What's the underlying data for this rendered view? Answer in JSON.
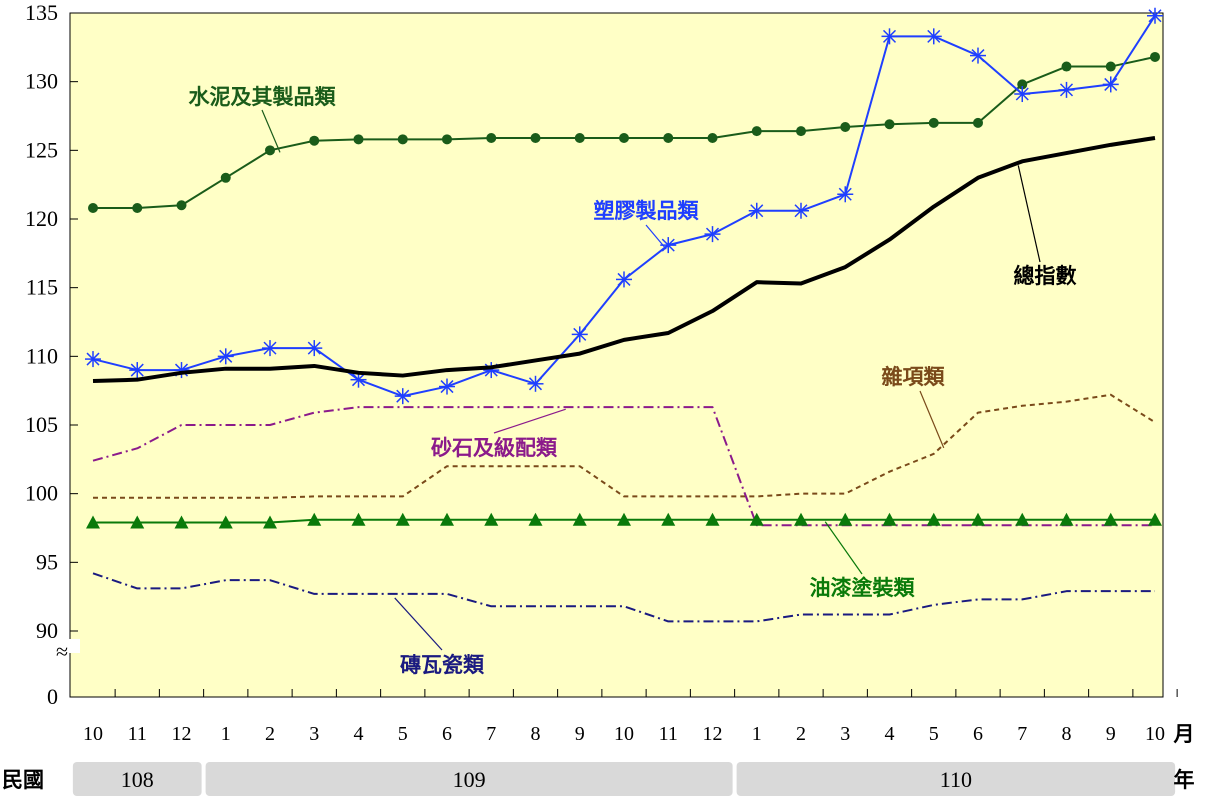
{
  "chart_data": {
    "type": "line",
    "title": "",
    "xlabel": "",
    "ylabel": "",
    "x_unit_label": "月",
    "year_unit_label": "年",
    "era_label": "民國",
    "ylim": [
      88,
      135
    ],
    "y_ticks": [
      0,
      90,
      95,
      100,
      105,
      110,
      115,
      120,
      125,
      130,
      135
    ],
    "y_axis_break": true,
    "break_symbol": "≈",
    "grid": false,
    "legend": "none",
    "categories": [
      "10",
      "11",
      "12",
      "1",
      "2",
      "3",
      "4",
      "5",
      "6",
      "7",
      "8",
      "9",
      "10",
      "11",
      "12",
      "1",
      "2",
      "3",
      "4",
      "5",
      "6",
      "7",
      "8",
      "9",
      "10"
    ],
    "years": [
      {
        "label": "108",
        "from": 0,
        "to": 2
      },
      {
        "label": "109",
        "from": 3,
        "to": 14
      },
      {
        "label": "110",
        "from": 15,
        "to": 24
      }
    ],
    "series": [
      {
        "name": "水泥及其製品類",
        "color": "#1a5c1a",
        "style": "solid",
        "marker": "circle",
        "values": [
          120.8,
          120.8,
          121.0,
          123.0,
          125.0,
          125.7,
          125.8,
          125.8,
          125.8,
          125.9,
          125.9,
          125.9,
          125.9,
          125.9,
          125.9,
          126.4,
          126.4,
          126.7,
          126.9,
          127.0,
          127.0,
          129.8,
          131.1,
          131.1,
          131.8
        ]
      },
      {
        "name": "塑膠製品類",
        "color": "#1f3fff",
        "style": "solid",
        "marker": "asterisk",
        "values": [
          109.8,
          109.0,
          109.0,
          110.0,
          110.6,
          110.6,
          108.3,
          107.1,
          107.8,
          109.0,
          108.0,
          111.6,
          115.6,
          118.1,
          118.9,
          120.6,
          120.6,
          121.8,
          133.3,
          133.3,
          131.9,
          129.1,
          129.4,
          129.8,
          134.8
        ]
      },
      {
        "name": "總指數",
        "color": "#000000",
        "style": "solid-thick",
        "marker": "none",
        "values": [
          108.2,
          108.3,
          108.8,
          109.1,
          109.1,
          109.3,
          108.8,
          108.6,
          109.0,
          109.2,
          109.7,
          110.2,
          111.2,
          111.7,
          113.3,
          115.4,
          115.3,
          116.5,
          118.5,
          120.9,
          123.0,
          124.2,
          124.8,
          125.4,
          125.9
        ]
      },
      {
        "name": "雜項類",
        "color": "#7a4a1a",
        "style": "dashed",
        "marker": "none",
        "values": [
          99.7,
          99.7,
          99.7,
          99.7,
          99.7,
          99.8,
          99.8,
          99.8,
          102.0,
          102.0,
          102.0,
          102.0,
          99.8,
          99.8,
          99.8,
          99.8,
          100.0,
          100.0,
          101.6,
          102.9,
          105.9,
          106.4,
          106.7,
          107.2,
          105.2
        ]
      },
      {
        "name": "砂石及級配類",
        "color": "#8b1a8b",
        "style": "dashdot",
        "marker": "none",
        "values": [
          102.4,
          103.3,
          105.0,
          105.0,
          105.0,
          105.9,
          106.3,
          106.3,
          106.3,
          106.3,
          106.3,
          106.3,
          106.3,
          106.3,
          106.3,
          97.7,
          97.7,
          97.7,
          97.7,
          97.7,
          97.7,
          97.7,
          97.7,
          97.7,
          97.7
        ]
      },
      {
        "name": "油漆塗裝類",
        "color": "#0a7a0a",
        "style": "solid",
        "marker": "triangle",
        "values": [
          97.9,
          97.9,
          97.9,
          97.9,
          97.9,
          98.1,
          98.1,
          98.1,
          98.1,
          98.1,
          98.1,
          98.1,
          98.1,
          98.1,
          98.1,
          98.1,
          98.1,
          98.1,
          98.1,
          98.1,
          98.1,
          98.1,
          98.1,
          98.1,
          98.1
        ]
      },
      {
        "name": "磚瓦瓷類",
        "color": "#1a1a80",
        "style": "dashdot",
        "marker": "none",
        "values": [
          94.2,
          93.1,
          93.1,
          93.7,
          93.7,
          92.7,
          92.7,
          92.7,
          92.7,
          91.8,
          91.8,
          91.8,
          91.8,
          90.7,
          90.7,
          90.7,
          91.2,
          91.2,
          91.2,
          91.9,
          92.3,
          92.3,
          92.9,
          92.9,
          92.9
        ]
      }
    ],
    "annotations": [
      {
        "text": "水泥及其製品類",
        "series": 0
      },
      {
        "text": "塑膠製品類",
        "series": 1
      },
      {
        "text": "總指數",
        "series": 2
      },
      {
        "text": "雜項類",
        "series": 3
      },
      {
        "text": "砂石及級配類",
        "series": 4
      },
      {
        "text": "油漆塗裝類",
        "series": 5
      },
      {
        "text": "磚瓦瓷類",
        "series": 6
      }
    ],
    "colors": {
      "plot_background": "#ffffc6",
      "year_box": "#d9d9d9"
    }
  }
}
